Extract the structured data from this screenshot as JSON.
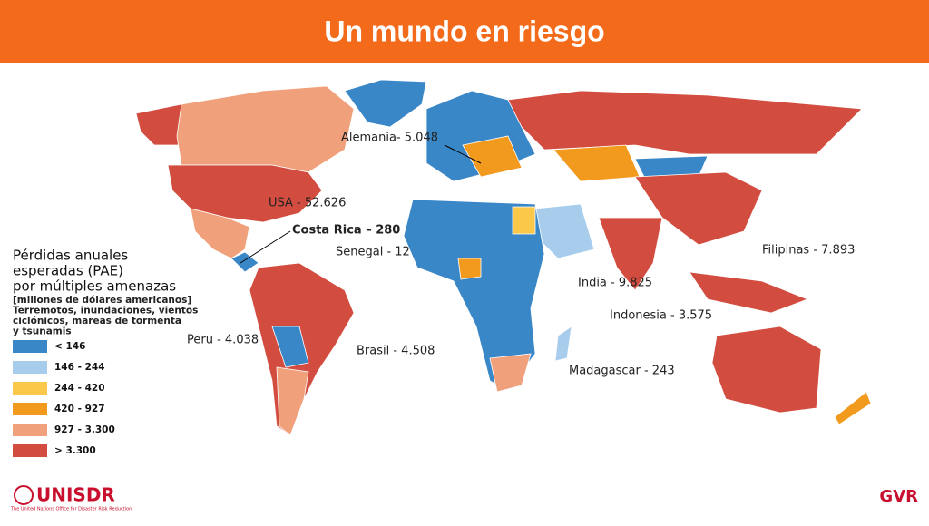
{
  "header": {
    "title": "Un mundo en riesgo"
  },
  "legend": {
    "title_lines": [
      "Pérdidas anuales",
      "esperadas (PAE)",
      "por múltiples amenazas"
    ],
    "note_lines": [
      "[millones de dólares americanos]",
      "Terremotos, inundaciones, vientos",
      "ciclónicos, mareas de tormenta",
      "y tsunamis"
    ],
    "items": [
      {
        "label": "< 146",
        "color": "#3a87c8"
      },
      {
        "label": "146 - 244",
        "color": "#a8cdec"
      },
      {
        "label": "244 - 420",
        "color": "#fcc84a"
      },
      {
        "label": "420 - 927",
        "color": "#f29a1e"
      },
      {
        "label": "927 - 3.300",
        "color": "#f0a07a"
      },
      {
        "label": "> 3.300",
        "color": "#d24c3f"
      }
    ]
  },
  "annotations": [
    "Alemania- 5.048",
    "USA - 52.626",
    "Costa Rica – 280",
    "Senegal - 12",
    "Filipinas - 7.893",
    "India - 9.825",
    "Indonesia - 3.575",
    "Peru - 4.038",
    "Brasil - 4.508",
    "Madagascar - 243"
  ],
  "footer": {
    "left": "UNISDR",
    "left_sub": "The United Nations Office for Disaster Risk Reduction",
    "right": "GVR"
  }
}
